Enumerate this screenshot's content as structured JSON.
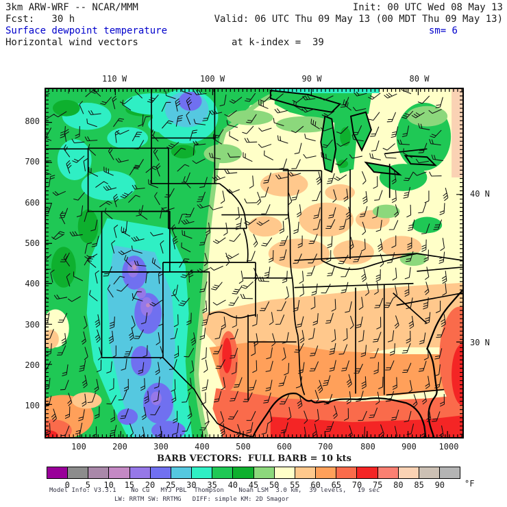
{
  "header": {
    "model": "3km ARW-WRF -- NCAR/MMM",
    "init": "Init: 00 UTC Wed 08 May 13",
    "fcst": "Fcst:   30 h",
    "valid": "Valid: 06 UTC Thu 09 May 13 (00 MDT Thu 09 May 13)",
    "field_title": "Surface dewpoint temperature",
    "sm": "sm= 6",
    "field_subtitle": "Horizontal wind vectors",
    "k_index": "at k-index =  39"
  },
  "axes": {
    "top": [
      "110 W",
      "100 W",
      "90 W",
      "80 W"
    ],
    "left": [
      "800",
      "700",
      "600",
      "500",
      "400",
      "300",
      "200",
      "100"
    ],
    "right": [
      "40 N",
      "30 N"
    ],
    "bottom": [
      "100",
      "200",
      "300",
      "400",
      "500",
      "600",
      "700",
      "800",
      "900",
      "1000"
    ]
  },
  "legend": {
    "barb_caption": "BARB VECTORS:  FULL BARB = 10 kts",
    "tick_labels": [
      "0",
      "5",
      "10",
      "15",
      "20",
      "25",
      "30",
      "35",
      "40",
      "45",
      "50",
      "55",
      "60",
      "65",
      "70",
      "75",
      "80",
      "85",
      "90"
    ],
    "unit": "°F",
    "colors": [
      "#990099",
      "#8C8C8C",
      "#A988A9",
      "#C489C4",
      "#9678E8",
      "#7070F0",
      "#55C8E0",
      "#2FEFC4",
      "#1FC855",
      "#0EB02E",
      "#8CD87C",
      "#FFFFC8",
      "#FFC88C",
      "#FFA05A",
      "#FA6B4B",
      "#F42525",
      "#FA8072",
      "#FAD2B4",
      "#CCC0B4",
      "#B4B4B4"
    ]
  },
  "footer": {
    "line1": "Model Info: V3.3.1    No Cu   MYJ PBL  Thompson    Noah LSM  3.0 km,  39 levels,   19 sec",
    "line2": "LW: RRTM SW: RRTMG   DIFF: simple KM: 2D Smagor"
  },
  "colors": {
    "text": "#1a1a1a",
    "accent_blue": "#0000cc",
    "footer_text": "#333344"
  },
  "chart_data": {
    "type": "heatmap",
    "title": "Surface dewpoint temperature (°F), horizontal wind vectors",
    "colorbar_levels_f": [
      0,
      5,
      10,
      15,
      20,
      25,
      30,
      35,
      40,
      45,
      50,
      55,
      60,
      65,
      70,
      75,
      80,
      85,
      90
    ],
    "colorbar_colors": [
      "#990099",
      "#8C8C8C",
      "#A988A9",
      "#C489C4",
      "#9678E8",
      "#7070F0",
      "#55C8E0",
      "#2FEFC4",
      "#1FC855",
      "#0EB02E",
      "#8CD87C",
      "#FFFFC8",
      "#FFC88C",
      "#FFA05A",
      "#FA6B4B",
      "#F42525",
      "#FA8072",
      "#FAD2B4",
      "#CCC0B4",
      "#B4B4B4"
    ],
    "x_grid_labels": [
      100,
      200,
      300,
      400,
      500,
      600,
      700,
      800,
      900,
      1000
    ],
    "y_grid_labels": [
      800,
      700,
      600,
      500,
      400,
      300,
      200,
      100
    ],
    "longitude_labels": [
      "110 W",
      "100 W",
      "90 W",
      "80 W"
    ],
    "latitude_labels": [
      "40 N",
      "30 N"
    ],
    "wind_barb_scale": "full barb = 10 kts"
  }
}
